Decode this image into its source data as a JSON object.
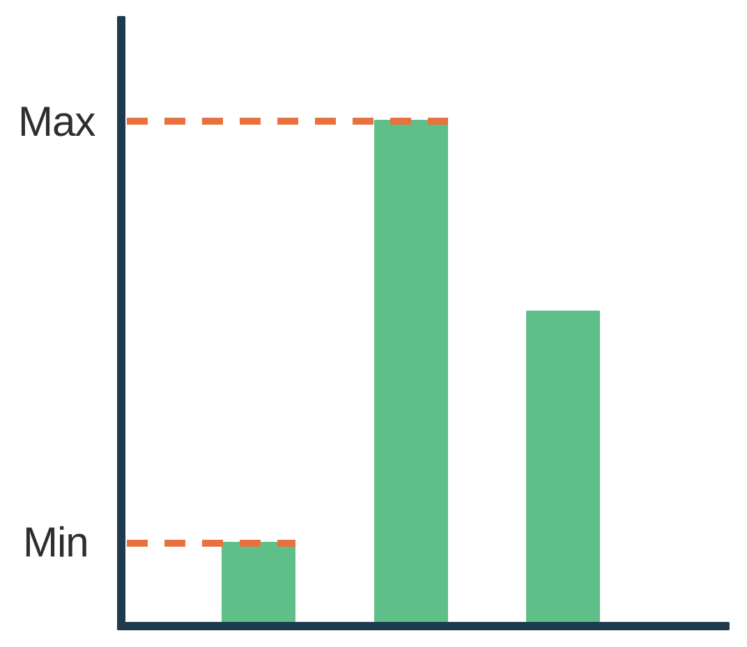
{
  "chart_data": {
    "type": "bar",
    "title": "",
    "xlabel": "",
    "ylabel": "",
    "categories": [
      "",
      "",
      ""
    ],
    "values": [
      16,
      100,
      62
    ],
    "value_scale": "relative, Max = 100 (no numeric axis ticks shown)",
    "ylim": [
      0,
      100
    ],
    "gridlines": false,
    "legend": false,
    "annotations": [
      {
        "label": "Max",
        "value": 100,
        "bar_index": 1,
        "style": "dashed-line"
      },
      {
        "label": "Min",
        "value": 16,
        "bar_index": 0,
        "style": "dashed-line"
      }
    ],
    "colors": {
      "bar": "#5EC088",
      "axis": "#1D3A4E",
      "annotation_line": "#E7713F",
      "label_text": "#2E2E2E",
      "background": "#FFFFFF"
    }
  },
  "labels": {
    "max": "Max",
    "min": "Min"
  }
}
